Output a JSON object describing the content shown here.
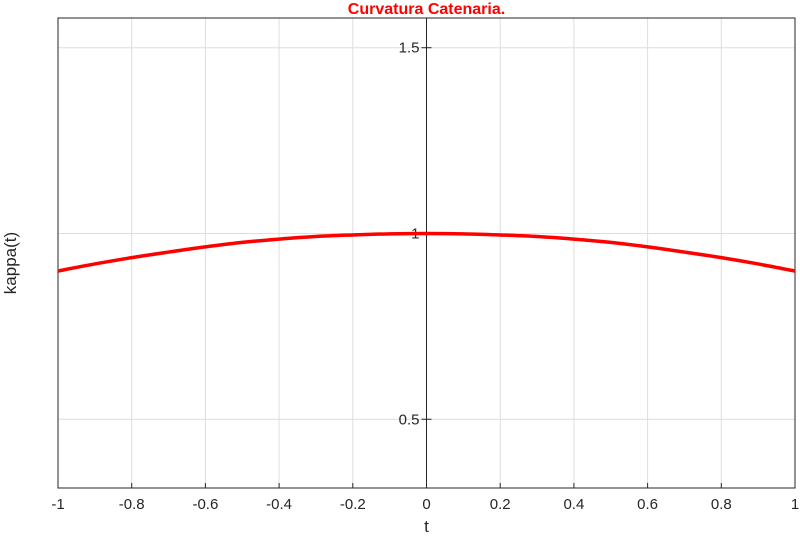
{
  "chart_data": {
    "type": "line",
    "title": "Curvatura Catenaria.",
    "xlabel": "t",
    "ylabel": "kappa(t)",
    "xlim": [
      -1,
      1
    ],
    "ylim": [
      0.315,
      1.58
    ],
    "x_ticks": [
      -1,
      -0.8,
      -0.6,
      -0.4,
      -0.2,
      0,
      0.2,
      0.4,
      0.6,
      0.8,
      1
    ],
    "x_tick_labels": [
      "-1",
      "-0.8",
      "-0.6",
      "-0.4",
      "-0.2",
      "0",
      "0.2",
      "0.4",
      "0.6",
      "0.8",
      "1"
    ],
    "y_ticks": [
      0.5,
      1,
      1.5
    ],
    "y_tick_labels": [
      "0.5",
      "1",
      "1.5"
    ],
    "grid": true,
    "y_axis_location": "origin",
    "series": [
      {
        "color": "#ff0000",
        "x": [
          -1,
          -0.9,
          -0.8,
          -0.7,
          -0.6,
          -0.5,
          -0.4,
          -0.3,
          -0.2,
          -0.1,
          0,
          0.1,
          0.2,
          0.3,
          0.4,
          0.5,
          0.6,
          0.7,
          0.8,
          0.9,
          1
        ],
        "y": [
          0.899,
          0.918,
          0.935,
          0.95,
          0.964,
          0.976,
          0.985,
          0.992,
          0.996,
          0.999,
          1.0,
          0.999,
          0.996,
          0.992,
          0.985,
          0.976,
          0.964,
          0.95,
          0.935,
          0.918,
          0.899
        ]
      }
    ]
  }
}
